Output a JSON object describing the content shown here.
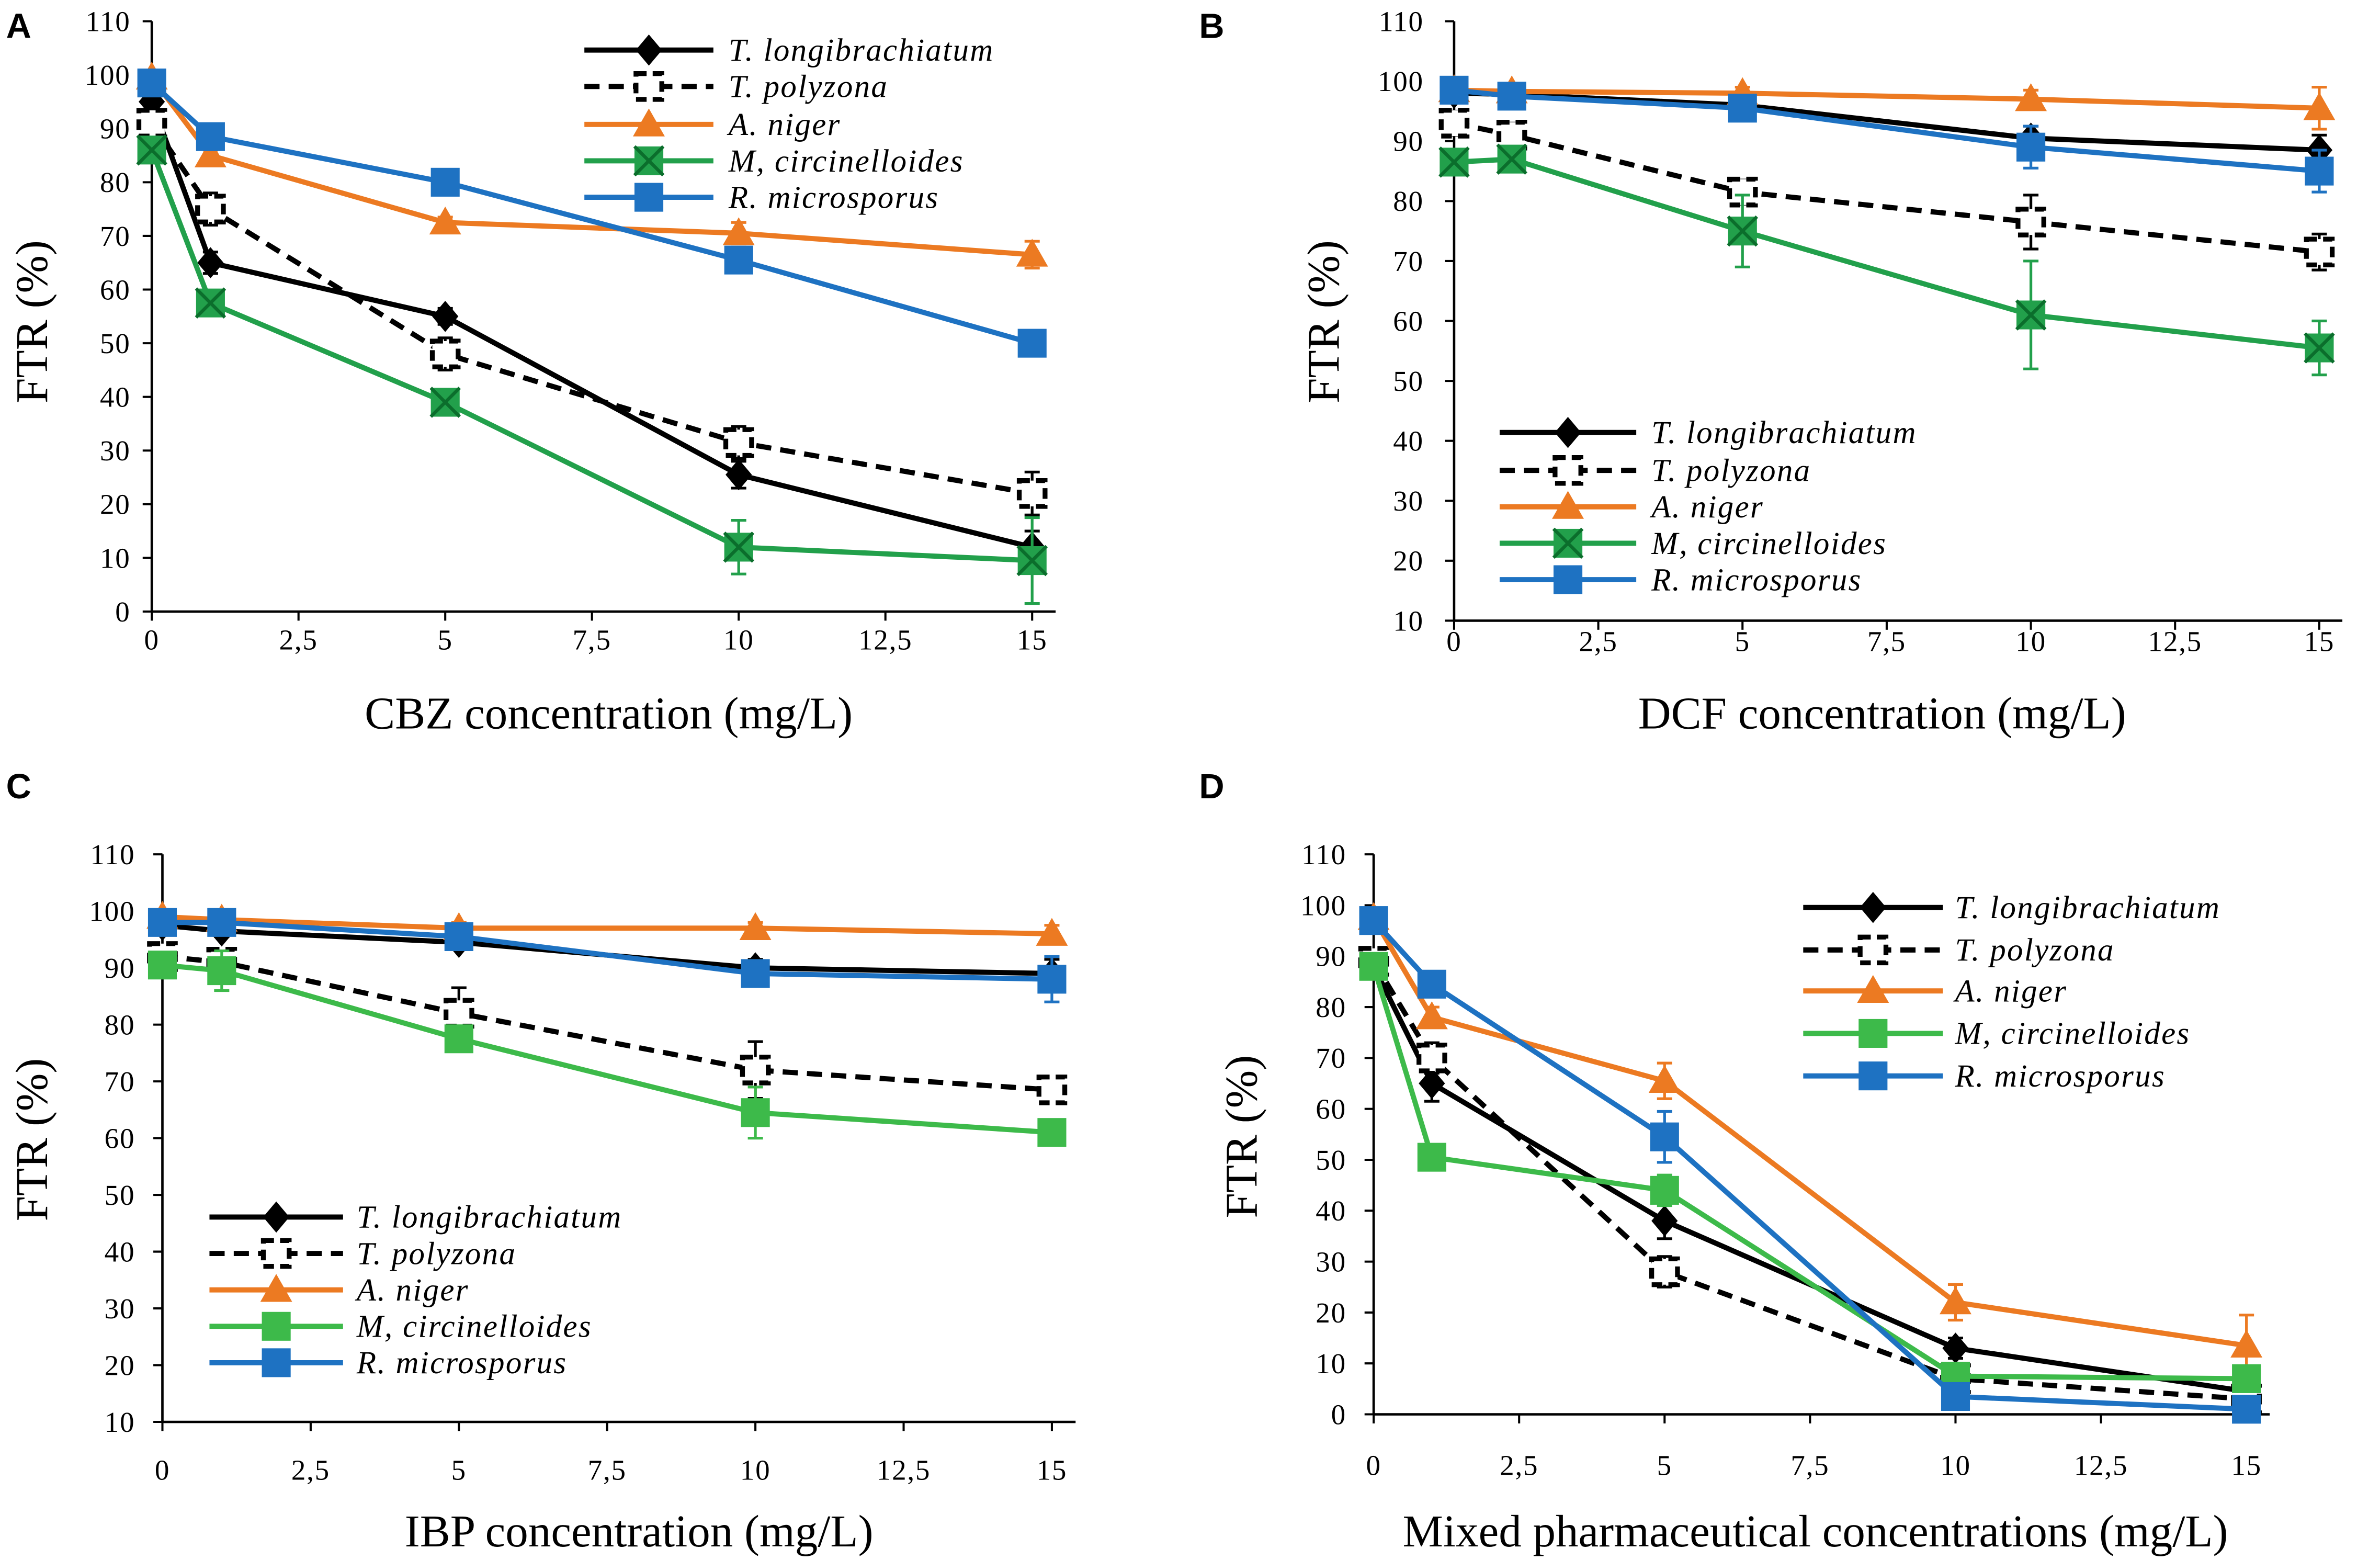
{
  "chart_data": [
    {
      "panel_label": "A",
      "type": "line",
      "xlabel": "CBZ concentration (mg/L)",
      "ylabel": "FTR (%)",
      "x": [
        0,
        1,
        5,
        10,
        15
      ],
      "xlim": [
        0,
        15.4
      ],
      "ylim": [
        0,
        110
      ],
      "x_tick_values": [
        0,
        2.5,
        5,
        7.5,
        10,
        12.5,
        15
      ],
      "x_tick_labels": [
        "0",
        "2,5",
        "5",
        "7,5",
        "10",
        "12,5",
        "15"
      ],
      "y_tick_values": [
        0,
        10,
        20,
        30,
        40,
        50,
        60,
        70,
        80,
        90,
        100,
        110
      ],
      "y_tick_labels": [
        "0",
        "10",
        "20",
        "30",
        "40",
        "50",
        "60",
        "70",
        "80",
        "90",
        "100",
        "110"
      ],
      "grid": false,
      "legend_position": "top-right",
      "series": [
        {
          "name": "T. longibrachiatum",
          "color": "#000000",
          "line_style": "solid",
          "marker": "diamond",
          "values": [
            95,
            65,
            55,
            25.5,
            12
          ],
          "errors": [
            3,
            2,
            1.5,
            2.5,
            3
          ]
        },
        {
          "name": "T. polyzona",
          "color": "#000000",
          "line_style": "dashed",
          "marker": "open-square",
          "values": [
            91,
            75,
            48,
            31.5,
            22
          ],
          "errors": [
            3,
            3,
            3,
            3,
            4
          ]
        },
        {
          "name": "A. niger",
          "color": "#EC7A22",
          "line_style": "solid",
          "marker": "triangle",
          "values": [
            99.5,
            85,
            72.5,
            70.5,
            66.5
          ],
          "errors": [
            1,
            1,
            1,
            2,
            2.5
          ]
        },
        {
          "name": "M, circinelloides",
          "color": "#22A04B",
          "accent_color": "#0B6E2C",
          "line_style": "solid",
          "marker": "square-x",
          "values": [
            86,
            57.5,
            39,
            12,
            9.5
          ],
          "errors": [
            2,
            2,
            2,
            5,
            8
          ]
        },
        {
          "name": "R. microsporus",
          "color": "#1E72C2",
          "line_style": "solid",
          "marker": "square",
          "values": [
            98.5,
            88.5,
            80,
            65.5,
            50
          ],
          "errors": [
            1.5,
            1.5,
            1.5,
            2,
            2
          ]
        }
      ]
    },
    {
      "panel_label": "B",
      "type": "line",
      "xlabel": "DCF concentration (mg/L)",
      "ylabel": "FTR (%)",
      "x": [
        0,
        1,
        5,
        10,
        15
      ],
      "xlim": [
        0,
        15.4
      ],
      "ylim": [
        10,
        110
      ],
      "x_tick_values": [
        0,
        2.5,
        5,
        7.5,
        10,
        12.5,
        15
      ],
      "x_tick_labels": [
        "0",
        "2,5",
        "5",
        "7,5",
        "10",
        "12,5",
        "15"
      ],
      "y_tick_values": [
        10,
        20,
        30,
        40,
        50,
        60,
        70,
        80,
        90,
        100,
        110
      ],
      "y_tick_labels": [
        "10",
        "20",
        "30",
        "40",
        "50",
        "60",
        "70",
        "80",
        "90",
        "100",
        "110"
      ],
      "grid": false,
      "legend_position": "bottom-left",
      "series": [
        {
          "name": "T. longibrachiatum",
          "color": "#000000",
          "line_style": "solid",
          "marker": "diamond",
          "values": [
            98,
            97.8,
            96,
            90.5,
            88.5
          ],
          "errors": [
            1,
            1,
            1.5,
            2,
            2.5
          ]
        },
        {
          "name": "T. polyzona",
          "color": "#000000",
          "line_style": "dashed",
          "marker": "open-square",
          "values": [
            93,
            91,
            81.5,
            76.5,
            71.5
          ],
          "errors": [
            2,
            2,
            2,
            4.5,
            3
          ]
        },
        {
          "name": "A. niger",
          "color": "#EC7A22",
          "line_style": "solid",
          "marker": "triangle",
          "values": [
            98.5,
            98.3,
            98,
            97,
            95.5
          ],
          "errors": [
            1,
            1,
            1,
            1.5,
            3.5
          ]
        },
        {
          "name": "M, circinelloides",
          "color": "#22A04B",
          "accent_color": "#0B6E2C",
          "line_style": "solid",
          "marker": "square-x",
          "values": [
            86.5,
            87,
            75,
            61,
            55.5
          ],
          "errors": [
            2,
            2,
            6,
            9,
            4.5
          ]
        },
        {
          "name": "R. microsporus",
          "color": "#1E72C2",
          "line_style": "solid",
          "marker": "square",
          "values": [
            98.5,
            97.5,
            95.5,
            89,
            85
          ],
          "errors": [
            1,
            1,
            2,
            3.5,
            3.5
          ]
        }
      ]
    },
    {
      "panel_label": "C",
      "type": "line",
      "xlabel": "IBP concentration (mg/L)",
      "ylabel": "FTR (%)",
      "x": [
        0,
        1,
        5,
        10,
        15
      ],
      "xlim": [
        0,
        15.4
      ],
      "ylim": [
        10,
        110
      ],
      "x_tick_values": [
        0,
        2.5,
        5,
        7.5,
        10,
        12.5,
        15
      ],
      "x_tick_labels": [
        "0",
        "2,5",
        "5",
        "7,5",
        "10",
        "12,5",
        "15"
      ],
      "y_tick_values": [
        10,
        20,
        30,
        40,
        50,
        60,
        70,
        80,
        90,
        100,
        110
      ],
      "y_tick_labels": [
        "10",
        "20",
        "30",
        "40",
        "50",
        "60",
        "70",
        "80",
        "90",
        "100",
        "110"
      ],
      "grid": false,
      "legend_position": "bottom-left",
      "series": [
        {
          "name": "T. longibrachiatum",
          "color": "#000000",
          "line_style": "solid",
          "marker": "diamond",
          "values": [
            97.5,
            96.5,
            94.5,
            90,
            89
          ],
          "errors": [
            1,
            1,
            1,
            1.5,
            2.5
          ]
        },
        {
          "name": "T. polyzona",
          "color": "#000000",
          "line_style": "dashed",
          "marker": "open-square",
          "values": [
            92,
            91,
            82,
            72,
            68.5
          ],
          "errors": [
            1.5,
            1.5,
            4.5,
            5,
            2
          ]
        },
        {
          "name": "A. niger",
          "color": "#EC7A22",
          "line_style": "solid",
          "marker": "triangle",
          "values": [
            99,
            98.5,
            97,
            97,
            96
          ],
          "errors": [
            1,
            1,
            1,
            1,
            1.5
          ]
        },
        {
          "name": "M, circinelloides",
          "color": "#3DBA4A",
          "line_style": "solid",
          "marker": "square",
          "values": [
            90.5,
            89.5,
            77.5,
            64.5,
            61
          ],
          "errors": [
            2,
            3.5,
            2,
            4.5,
            2
          ]
        },
        {
          "name": "R. microsporus",
          "color": "#1E72C2",
          "line_style": "solid",
          "marker": "square",
          "values": [
            98,
            98,
            95.5,
            89,
            88
          ],
          "errors": [
            1,
            1,
            1.5,
            2,
            4
          ]
        }
      ]
    },
    {
      "panel_label": "D",
      "type": "line",
      "xlabel": "Mixed pharmaceutical concentrations (mg/L)",
      "ylabel": "FTR (%)",
      "x": [
        0,
        1,
        5,
        10,
        15
      ],
      "xlim": [
        0,
        15.4
      ],
      "ylim": [
        0,
        110
      ],
      "x_tick_values": [
        0,
        2.5,
        5,
        7.5,
        10,
        12.5,
        15
      ],
      "x_tick_labels": [
        "0",
        "2,5",
        "5",
        "7,5",
        "10",
        "12,5",
        "15"
      ],
      "y_tick_values": [
        0,
        10,
        20,
        30,
        40,
        50,
        60,
        70,
        80,
        90,
        100,
        110
      ],
      "y_tick_labels": [
        "0",
        "10",
        "20",
        "30",
        "40",
        "50",
        "60",
        "70",
        "80",
        "90",
        "100",
        "110"
      ],
      "grid": false,
      "legend_position": "top-right",
      "series": [
        {
          "name": "T. longibrachiatum",
          "color": "#000000",
          "line_style": "solid",
          "marker": "diamond",
          "values": [
            88,
            65,
            38,
            13,
            4.5
          ],
          "errors": [
            2,
            3.5,
            3.5,
            2,
            1.5
          ]
        },
        {
          "name": "T. polyzona",
          "color": "#000000",
          "line_style": "dashed",
          "marker": "open-square",
          "values": [
            89,
            70,
            28,
            7,
            3
          ],
          "errors": [
            2,
            3,
            3,
            1.5,
            1.5
          ]
        },
        {
          "name": "A. niger",
          "color": "#EC7A22",
          "line_style": "solid",
          "marker": "triangle",
          "values": [
            97.5,
            78,
            65.5,
            22,
            13.5
          ],
          "errors": [
            2,
            2,
            3.5,
            3.5,
            6
          ]
        },
        {
          "name": "M, circinelloides",
          "color": "#3DBA4A",
          "line_style": "solid",
          "marker": "square",
          "values": [
            88,
            50.5,
            44,
            7.5,
            7
          ],
          "errors": [
            2,
            2,
            3,
            1.5,
            1.5
          ]
        },
        {
          "name": "R. microsporus",
          "color": "#1E72C2",
          "line_style": "solid",
          "marker": "square",
          "values": [
            97,
            84.5,
            54.5,
            3.5,
            1
          ],
          "errors": [
            1.5,
            1.5,
            5,
            1.5,
            1
          ]
        }
      ]
    }
  ]
}
